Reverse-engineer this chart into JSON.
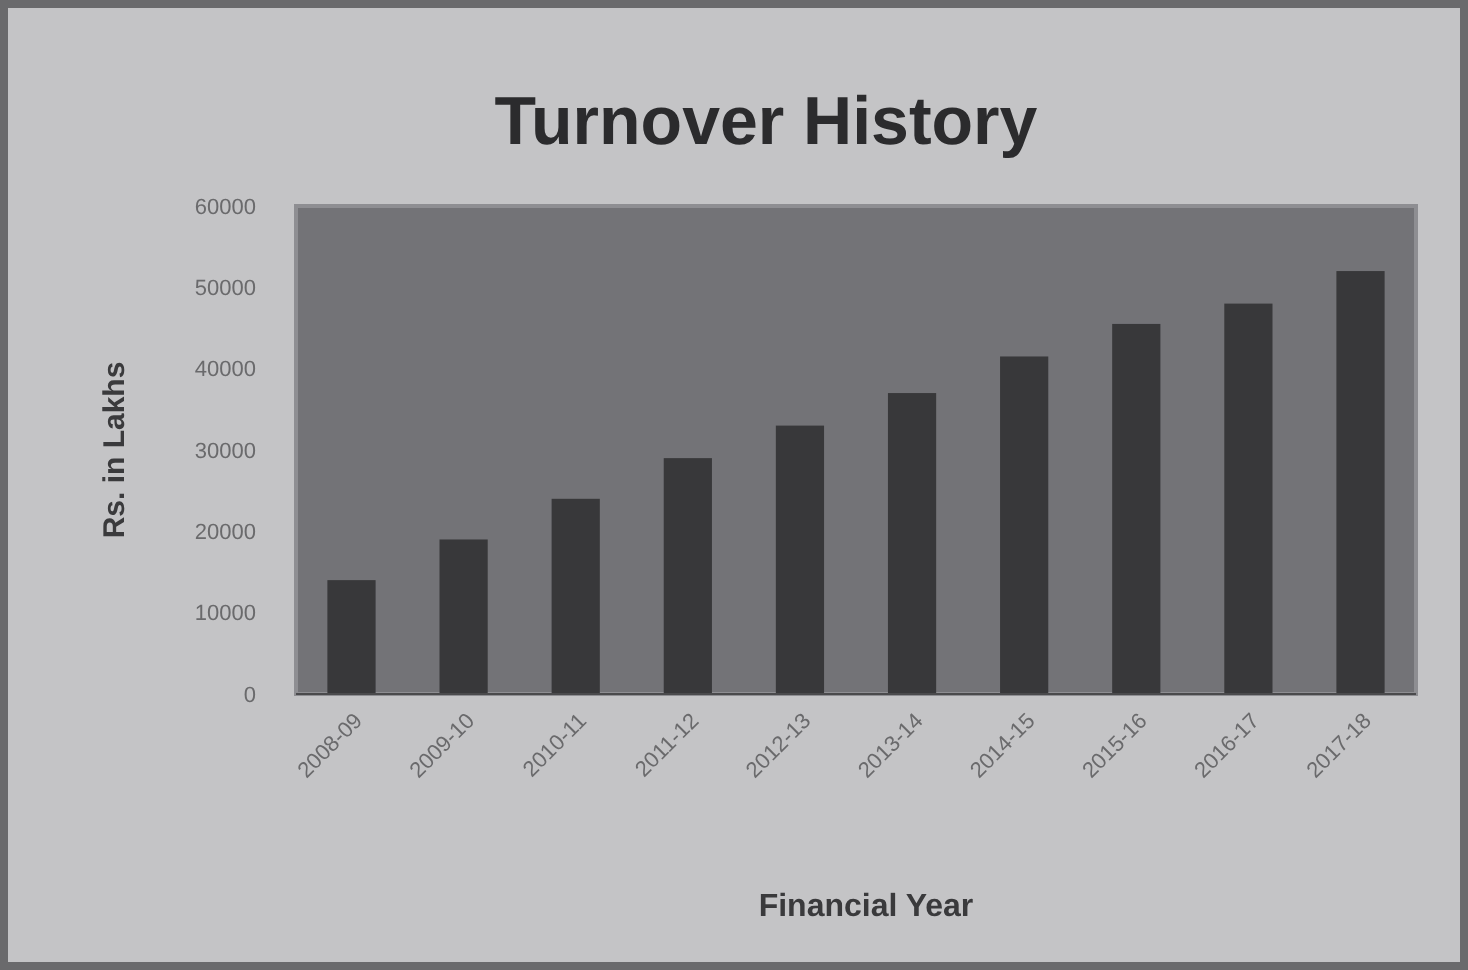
{
  "chart_data": {
    "type": "bar",
    "title": "Turnover History",
    "xlabel": "Financial Year",
    "ylabel": "Rs. in Lakhs",
    "categories": [
      "2008-09",
      "2009-10",
      "2010-11",
      "2011-12",
      "2012-13",
      "2013-14",
      "2014-15",
      "2015-16",
      "2016-17",
      "2017-18"
    ],
    "values": [
      14000,
      19000,
      24000,
      29000,
      33000,
      37000,
      41500,
      45500,
      48000,
      52000
    ],
    "color": "#38383a",
    "ylim": [
      0,
      60000
    ],
    "yticks": [
      0,
      10000,
      20000,
      30000,
      40000,
      50000,
      60000
    ],
    "grid": false
  }
}
